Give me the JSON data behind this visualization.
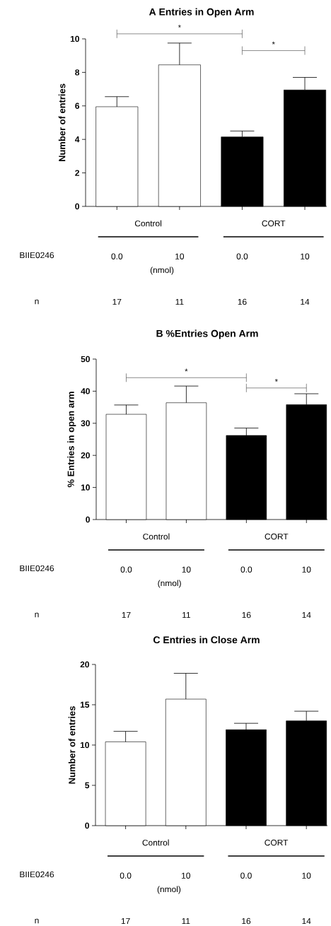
{
  "chart_data": [
    {
      "type": "bar",
      "title": "A Entries in  Open Arm",
      "ylabel": "Number of entries",
      "categories": [
        "0.0",
        "10",
        "0.0",
        "10"
      ],
      "values": [
        5.95,
        8.45,
        4.15,
        6.95
      ],
      "errors": [
        [
          5.95,
          6.55
        ],
        [
          8.45,
          9.75
        ],
        [
          4.15,
          4.5
        ],
        [
          6.95,
          7.7
        ]
      ],
      "colors": [
        "#ffffff",
        "#ffffff",
        "#000000",
        "#000000"
      ],
      "ylim": [
        0,
        10
      ],
      "yticks": [
        0,
        2,
        4,
        6,
        8,
        10
      ],
      "annotations": [
        "Control",
        "CORT",
        "BIIE0246",
        "(nmol)",
        "n",
        "17",
        "11",
        "16",
        "14",
        "*",
        "*"
      ]
    },
    {
      "type": "bar",
      "title": "B %Entries Open Arm",
      "ylabel": "% Entries in open arm",
      "categories": [
        "0.0",
        "10",
        "0.0",
        "10"
      ],
      "values": [
        32.8,
        36.4,
        26.2,
        35.8
      ],
      "errors": [
        [
          32.8,
          35.7
        ],
        [
          36.4,
          41.6
        ],
        [
          26.2,
          28.5
        ],
        [
          35.8,
          39.2
        ]
      ],
      "colors": [
        "#ffffff",
        "#ffffff",
        "#000000",
        "#000000"
      ],
      "ylim": [
        0,
        50
      ],
      "yticks": [
        0,
        10,
        20,
        30,
        40,
        50
      ],
      "annotations": [
        "Control",
        "CORT",
        "BIIE0246",
        "(nmol)",
        "n",
        "17",
        "11",
        "16",
        "14",
        "*",
        "*"
      ]
    },
    {
      "type": "bar",
      "title": "C Entries in  Close Arm",
      "ylabel": "Number of entries",
      "categories": [
        "0.0",
        "10",
        "0.0",
        "10"
      ],
      "values": [
        10.4,
        15.7,
        11.9,
        13.0
      ],
      "errors": [
        [
          10.4,
          11.7
        ],
        [
          15.7,
          18.9
        ],
        [
          11.9,
          12.7
        ],
        [
          13.0,
          14.2
        ]
      ],
      "colors": [
        "#ffffff",
        "#ffffff",
        "#000000",
        "#000000"
      ],
      "ylim": [
        0,
        20
      ],
      "yticks": [
        0,
        5,
        10,
        15,
        20
      ],
      "annotations": [
        "Control",
        "CORT",
        "BIIE0246",
        "(nmol)",
        "n",
        "17",
        "11",
        "16",
        "14"
      ]
    }
  ]
}
